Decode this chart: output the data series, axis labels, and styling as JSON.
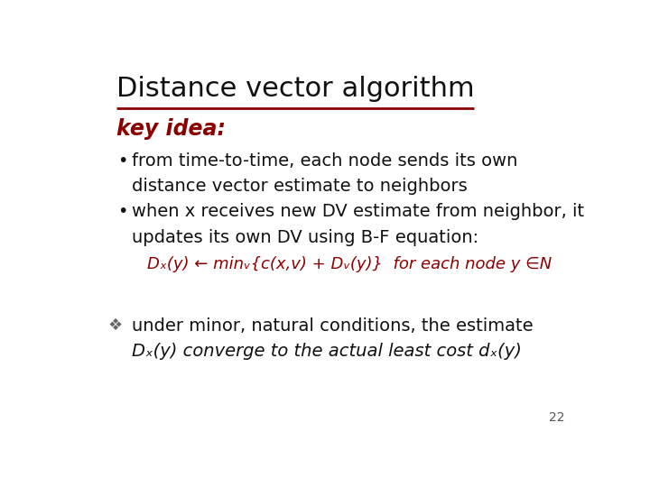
{
  "title": "Distance vector algorithm",
  "title_color": "#111111",
  "title_fontsize": 22,
  "underline_color": "#8B0000",
  "key_idea_text": "key idea:",
  "key_idea_color": "#8B0000",
  "key_idea_fontsize": 17,
  "bullet1_line1": "from time-to-time, each node sends its own",
  "bullet1_line2": "distance vector estimate to neighbors",
  "bullet2_line1": "when x receives new DV estimate from neighbor, it",
  "bullet2_line2": "updates its own DV using B-F equation:",
  "bf_equation": "Dₓ(y) ← minᵥ{c(x,v) + Dᵥ(y)}  for each node y ∈N",
  "bf_color": "#8B0000",
  "bf_fontsize": 13,
  "bullet_fontsize": 14,
  "bullet_color": "#111111",
  "diamond_line1": "under minor, natural conditions, the estimate",
  "diamond_line2": "Dₓ(y) converge to the actual least cost dₓ(y)",
  "diamond_fontsize": 14,
  "diamond_color": "#111111",
  "page_number": "22",
  "background_color": "#ffffff"
}
